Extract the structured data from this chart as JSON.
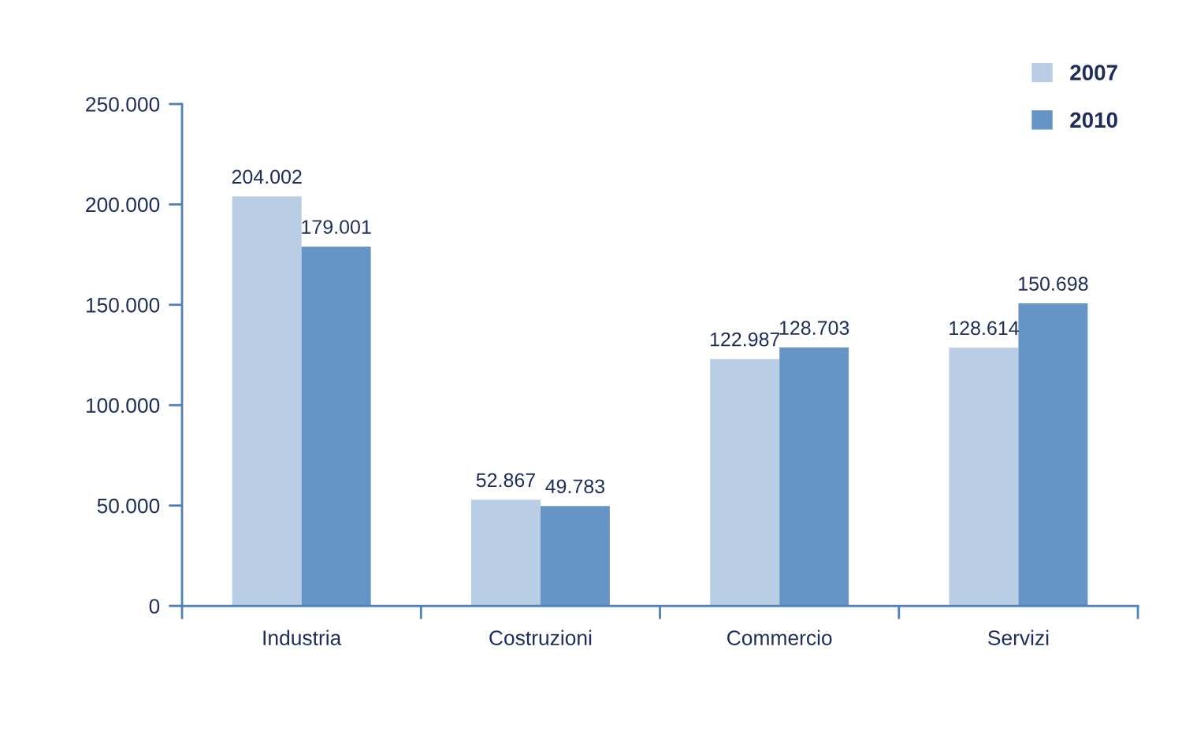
{
  "chart_data": {
    "type": "bar",
    "categories": [
      "Industria",
      "Costruzioni",
      "Commercio",
      "Servizi"
    ],
    "series": [
      {
        "name": "2007",
        "color": "#b9cde5",
        "values": [
          204002,
          52867,
          122987,
          128614
        ],
        "value_labels": [
          "204.002",
          "52.867",
          "122.987",
          "128.614"
        ]
      },
      {
        "name": "2010",
        "color": "#6794c6",
        "values": [
          179001,
          49783,
          128703,
          150698
        ],
        "value_labels": [
          "179.001",
          "49.783",
          "128.703",
          "150.698"
        ]
      }
    ],
    "ylim": [
      0,
      250000
    ],
    "yticks": [
      {
        "value": 0,
        "label": "0"
      },
      {
        "value": 50000,
        "label": "50.000"
      },
      {
        "value": 100000,
        "label": "100.000"
      },
      {
        "value": 150000,
        "label": "150.000"
      },
      {
        "value": 200000,
        "label": "200.000"
      },
      {
        "value": 250000,
        "label": "250.000"
      }
    ],
    "grid": false,
    "legend": "top right"
  }
}
